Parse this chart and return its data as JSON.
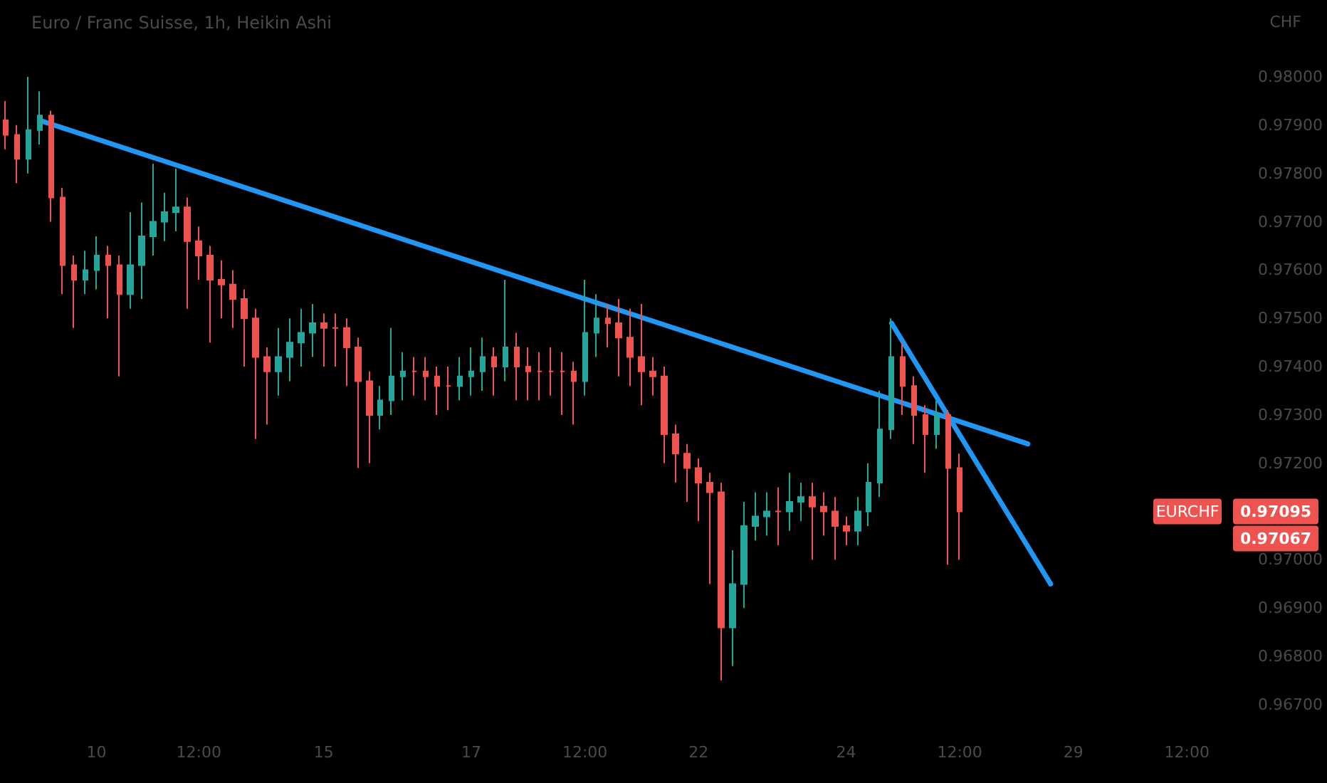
{
  "chart_data": {
    "type": "candlestick",
    "title": "Euro / Franc Suisse, 1h, Heikin Ashi",
    "ylabel": "CHF",
    "ylim": [
      0.967,
      0.98
    ],
    "categories": [
      null,
      null,
      null,
      null,
      null,
      null,
      null,
      null,
      "10",
      null,
      null,
      null,
      null,
      null,
      null,
      null,
      null,
      "12:00",
      null,
      null,
      null,
      null,
      null,
      null,
      null,
      null,
      null,
      null,
      "15",
      null,
      null,
      null,
      null,
      null,
      null,
      null,
      null,
      null,
      null,
      null,
      null,
      "17",
      null,
      null,
      null,
      null,
      null,
      null,
      null,
      null,
      null,
      "12:00",
      null,
      null,
      null,
      null,
      null,
      null,
      null,
      null,
      null,
      "22",
      null,
      null,
      null,
      null,
      null,
      null,
      null,
      null,
      null,
      null,
      null,
      null,
      "24",
      null,
      null,
      null,
      null,
      null,
      null,
      null,
      null,
      null,
      "12:00",
      null,
      null,
      null,
      null,
      null,
      null,
      null,
      null,
      null,
      "29",
      null,
      null,
      null,
      null,
      null,
      null,
      null,
      null,
      null,
      "12:00",
      null,
      null,
      null
    ],
    "yticks": [
      {
        "value": 0.967,
        "label": "0.96700"
      },
      {
        "value": 0.968,
        "label": "0.96800"
      },
      {
        "value": 0.969,
        "label": "0.96900"
      },
      {
        "value": 0.97,
        "label": "0.97000"
      },
      {
        "value": 0.972,
        "label": "0.97200"
      },
      {
        "value": 0.973,
        "label": "0.97300"
      },
      {
        "value": 0.974,
        "label": "0.97400"
      },
      {
        "value": 0.975,
        "label": "0.97500"
      },
      {
        "value": 0.976,
        "label": "0.97600"
      },
      {
        "value": 0.977,
        "label": "0.97700"
      },
      {
        "value": 0.978,
        "label": "0.97800"
      },
      {
        "value": 0.979,
        "label": "0.97900"
      },
      {
        "value": 0.98,
        "label": "0.98000"
      }
    ],
    "grid": false,
    "marker": "none",
    "line_style": "solid",
    "annotations": [
      "EURCHF",
      "0.97095",
      "0.97067"
    ],
    "series": [
      {
        "ohlc": [
          [
            0.9791,
            0.9795,
            0.9785,
            0.9788
          ],
          [
            0.9788,
            0.979,
            0.9778,
            0.9783
          ],
          [
            0.9783,
            0.98,
            0.978,
            0.9789
          ],
          [
            0.9789,
            0.9797,
            0.9786,
            0.9792
          ],
          [
            0.9792,
            0.9793,
            0.977,
            0.9775
          ],
          [
            0.9775,
            0.9777,
            0.9755,
            0.9761
          ],
          [
            0.9761,
            0.9763,
            0.9748,
            0.9758
          ],
          [
            0.9758,
            0.9764,
            0.9755,
            0.976
          ],
          [
            0.976,
            0.9767,
            0.9756,
            0.9763
          ],
          [
            0.9763,
            0.9765,
            0.975,
            0.9761
          ],
          [
            0.9761,
            0.9763,
            0.9738,
            0.9755
          ],
          [
            0.9755,
            0.9772,
            0.9752,
            0.9761
          ],
          [
            0.9761,
            0.9774,
            0.9754,
            0.9767
          ],
          [
            0.9767,
            0.9782,
            0.9763,
            0.977
          ],
          [
            0.977,
            0.9776,
            0.9766,
            0.9772
          ],
          [
            0.9772,
            0.9781,
            0.9768,
            0.9773
          ],
          [
            0.9773,
            0.9775,
            0.9752,
            0.9766
          ],
          [
            0.9766,
            0.9769,
            0.9758,
            0.9763
          ],
          [
            0.9763,
            0.9765,
            0.9745,
            0.9758
          ],
          [
            0.9758,
            0.9762,
            0.975,
            0.9757
          ],
          [
            0.9757,
            0.976,
            0.9748,
            0.9754
          ],
          [
            0.9754,
            0.9756,
            0.974,
            0.975
          ],
          [
            0.975,
            0.9752,
            0.9725,
            0.9742
          ],
          [
            0.9742,
            0.9744,
            0.9728,
            0.9739
          ],
          [
            0.9739,
            0.9748,
            0.9734,
            0.9742
          ],
          [
            0.9742,
            0.975,
            0.9737,
            0.9745
          ],
          [
            0.9745,
            0.9752,
            0.974,
            0.9747
          ],
          [
            0.9747,
            0.9753,
            0.9742,
            0.9749
          ],
          [
            0.9749,
            0.9751,
            0.974,
            0.9748
          ],
          [
            0.9748,
            0.9751,
            0.974,
            0.9748
          ],
          [
            0.9748,
            0.975,
            0.9736,
            0.9744
          ],
          [
            0.9744,
            0.9746,
            0.9719,
            0.9737
          ],
          [
            0.9737,
            0.9739,
            0.972,
            0.973
          ],
          [
            0.973,
            0.9736,
            0.9727,
            0.9733
          ],
          [
            0.9733,
            0.9748,
            0.973,
            0.9738
          ],
          [
            0.9738,
            0.9743,
            0.9733,
            0.9739
          ],
          [
            0.9739,
            0.9742,
            0.9734,
            0.9739
          ],
          [
            0.9739,
            0.9742,
            0.9733,
            0.9738
          ],
          [
            0.9738,
            0.974,
            0.973,
            0.9736
          ],
          [
            0.9736,
            0.974,
            0.9731,
            0.9736
          ],
          [
            0.9736,
            0.9742,
            0.9733,
            0.9738
          ],
          [
            0.9738,
            0.9744,
            0.9734,
            0.9739
          ],
          [
            0.9739,
            0.9746,
            0.9735,
            0.9742
          ],
          [
            0.9742,
            0.9744,
            0.9734,
            0.974
          ],
          [
            0.974,
            0.9758,
            0.9737,
            0.9744
          ],
          [
            0.9744,
            0.9747,
            0.9733,
            0.974
          ],
          [
            0.974,
            0.9744,
            0.9733,
            0.9739
          ],
          [
            0.9739,
            0.9743,
            0.9733,
            0.9739
          ],
          [
            0.9739,
            0.9744,
            0.9734,
            0.9739
          ],
          [
            0.9739,
            0.9743,
            0.973,
            0.9739
          ],
          [
            0.9739,
            0.9741,
            0.9728,
            0.9737
          ],
          [
            0.9737,
            0.9758,
            0.9734,
            0.9747
          ],
          [
            0.9747,
            0.9755,
            0.9742,
            0.975
          ],
          [
            0.975,
            0.9753,
            0.9744,
            0.9749
          ],
          [
            0.9749,
            0.9754,
            0.9738,
            0.9746
          ],
          [
            0.9746,
            0.9752,
            0.9736,
            0.9742
          ],
          [
            0.9742,
            0.9753,
            0.9732,
            0.9739
          ],
          [
            0.9739,
            0.9742,
            0.9734,
            0.9738
          ],
          [
            0.9738,
            0.974,
            0.972,
            0.9726
          ],
          [
            0.9726,
            0.9728,
            0.9716,
            0.9722
          ],
          [
            0.9722,
            0.9724,
            0.9712,
            0.9719
          ],
          [
            0.9719,
            0.9721,
            0.9708,
            0.9716
          ],
          [
            0.9716,
            0.9718,
            0.9695,
            0.9714
          ],
          [
            0.9714,
            0.9716,
            0.9675,
            0.9686
          ],
          [
            0.9686,
            0.9702,
            0.9678,
            0.9695
          ],
          [
            0.9695,
            0.9712,
            0.969,
            0.9707
          ],
          [
            0.9707,
            0.9714,
            0.9704,
            0.9709
          ],
          [
            0.9709,
            0.9714,
            0.9705,
            0.971
          ],
          [
            0.971,
            0.9715,
            0.9703,
            0.971
          ],
          [
            0.971,
            0.9718,
            0.9706,
            0.9712
          ],
          [
            0.9712,
            0.9716,
            0.9708,
            0.9713
          ],
          [
            0.9713,
            0.9716,
            0.97,
            0.9711
          ],
          [
            0.9711,
            0.9714,
            0.9705,
            0.971
          ],
          [
            0.971,
            0.9713,
            0.97,
            0.9707
          ],
          [
            0.9707,
            0.9709,
            0.9703,
            0.9706
          ],
          [
            0.9706,
            0.9713,
            0.9703,
            0.971
          ],
          [
            0.971,
            0.972,
            0.9707,
            0.9716
          ],
          [
            0.9716,
            0.9735,
            0.9713,
            0.9727
          ],
          [
            0.9727,
            0.975,
            0.9725,
            0.9742
          ],
          [
            0.9742,
            0.9745,
            0.973,
            0.9736
          ],
          [
            0.9736,
            0.9738,
            0.9724,
            0.973
          ],
          [
            0.973,
            0.9732,
            0.9718,
            0.9726
          ],
          [
            0.9726,
            0.9733,
            0.9723,
            0.973
          ],
          [
            0.973,
            0.9731,
            0.9699,
            0.9719
          ],
          [
            0.9719,
            0.9722,
            0.97,
            0.971
          ],
          null,
          null,
          null,
          null,
          null,
          null,
          null,
          null,
          null,
          null,
          null,
          null,
          null,
          null,
          null,
          null,
          null,
          null,
          null,
          null,
          null,
          null,
          null
        ],
        "colors": [
          "#ef5350",
          "#ef5350",
          "#26a69a",
          "#26a69a",
          "#ef5350",
          "#ef5350",
          "#ef5350",
          "#26a69a",
          "#26a69a",
          "#ef5350",
          "#ef5350",
          "#26a69a",
          "#26a69a",
          "#26a69a",
          "#26a69a",
          "#26a69a",
          "#ef5350",
          "#ef5350",
          "#ef5350",
          "#ef5350",
          "#ef5350",
          "#ef5350",
          "#ef5350",
          "#ef5350",
          "#26a69a",
          "#26a69a",
          "#26a69a",
          "#26a69a",
          "#ef5350",
          "#ef5350",
          "#ef5350",
          "#ef5350",
          "#ef5350",
          "#26a69a",
          "#26a69a",
          "#26a69a",
          "#ef5350",
          "#ef5350",
          "#ef5350",
          "#ef5350",
          "#26a69a",
          "#26a69a",
          "#26a69a",
          "#ef5350",
          "#26a69a",
          "#ef5350",
          "#ef5350",
          "#ef5350",
          "#ef5350",
          "#ef5350",
          "#ef5350",
          "#26a69a",
          "#26a69a",
          "#ef5350",
          "#ef5350",
          "#ef5350",
          "#ef5350",
          "#ef5350",
          "#ef5350",
          "#ef5350",
          "#ef5350",
          "#ef5350",
          "#ef5350",
          "#ef5350",
          "#26a69a",
          "#26a69a",
          "#26a69a",
          "#26a69a",
          "#ef5350",
          "#26a69a",
          "#26a69a",
          "#ef5350",
          "#ef5350",
          "#ef5350",
          "#ef5350",
          "#26a69a",
          "#26a69a",
          "#26a69a",
          "#26a69a",
          "#ef5350",
          "#ef5350",
          "#ef5350",
          "#26a69a",
          "#ef5350",
          "#ef5350",
          null,
          null,
          null,
          null,
          null,
          null,
          null,
          null,
          null,
          null,
          null,
          null,
          null,
          null,
          null,
          null,
          null,
          null,
          null,
          null,
          null,
          null,
          null
        ]
      },
      {
        "type": "line",
        "color": "#2196f3",
        "values": [
          null,
          null,
          null,
          0.9791,
          null,
          null,
          null,
          null,
          null,
          null,
          null,
          null,
          null,
          null,
          null,
          null,
          null,
          null,
          null,
          null,
          null,
          null,
          null,
          null,
          null,
          null,
          null,
          null,
          null,
          null,
          null,
          null,
          null,
          null,
          null,
          null,
          null,
          null,
          null,
          null,
          null,
          null,
          null,
          null,
          null,
          null,
          null,
          null,
          null,
          null,
          null,
          null,
          null,
          null,
          null,
          null,
          null,
          null,
          null,
          null,
          null,
          null,
          null,
          null,
          null,
          null,
          null,
          null,
          null,
          null,
          null,
          null,
          null,
          null,
          null,
          null,
          null,
          null,
          null,
          null,
          null,
          null,
          null,
          null,
          null,
          null,
          null,
          null,
          null,
          null,
          0.9724,
          null,
          null,
          null,
          null,
          null,
          null,
          null,
          null,
          null,
          null,
          null,
          null,
          null,
          null,
          null,
          null,
          null
        ]
      },
      {
        "type": "line",
        "color": "#2196f3",
        "values": [
          null,
          null,
          null,
          null,
          null,
          null,
          null,
          null,
          null,
          null,
          null,
          null,
          null,
          null,
          null,
          null,
          null,
          null,
          null,
          null,
          null,
          null,
          null,
          null,
          null,
          null,
          null,
          null,
          null,
          null,
          null,
          null,
          null,
          null,
          null,
          null,
          null,
          null,
          null,
          null,
          null,
          null,
          null,
          null,
          null,
          null,
          null,
          null,
          null,
          null,
          null,
          null,
          null,
          null,
          null,
          null,
          null,
          null,
          null,
          null,
          null,
          null,
          null,
          null,
          null,
          null,
          null,
          null,
          null,
          null,
          null,
          null,
          null,
          null,
          null,
          null,
          null,
          null,
          0.9749,
          null,
          null,
          null,
          null,
          null,
          null,
          null,
          null,
          null,
          null,
          null,
          null,
          null,
          0.9695,
          null,
          null,
          null,
          null,
          null,
          null,
          null,
          null,
          null,
          null,
          null,
          null,
          null,
          null,
          null
        ]
      }
    ]
  }
}
